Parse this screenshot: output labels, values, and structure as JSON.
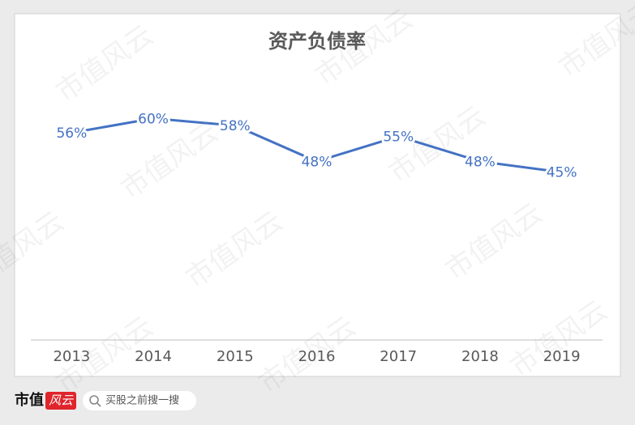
{
  "chart_data": {
    "type": "line",
    "title": "资产负债率",
    "categories": [
      "2013",
      "2014",
      "2015",
      "2016",
      "2017",
      "2018",
      "2019"
    ],
    "values": [
      56,
      60,
      58,
      48,
      55,
      48,
      45
    ],
    "value_labels": [
      "56%",
      "60%",
      "58%",
      "48%",
      "55%",
      "48%",
      "45%"
    ],
    "color": "#4472c4",
    "ylim": [
      0,
      70
    ]
  },
  "watermark": "市值风云",
  "footer": {
    "logo_left": "市值",
    "logo_right": "风云",
    "search": "买股之前搜一搜"
  }
}
